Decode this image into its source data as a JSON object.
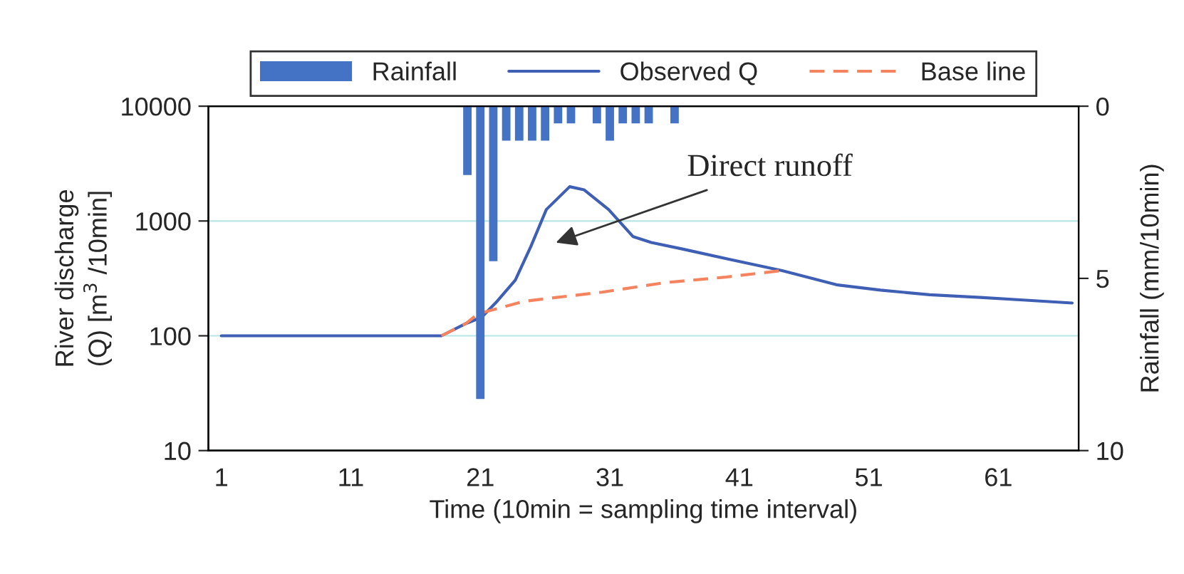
{
  "chart_data": {
    "type": "line",
    "xlabel": "Time (10min = sampling time interval)",
    "ylabel": "River discharge\n(Q) [m$^{3}$ /10min]",
    "y2label": "Rainfall (mm/10min)",
    "log": true,
    "xlim": [
      0,
      67.2
    ],
    "xticks": [
      1,
      11,
      21,
      31,
      41,
      51,
      61
    ],
    "ylim": [
      10,
      10000
    ],
    "yticks": [
      10,
      100,
      1000,
      10000
    ],
    "y2lim": [
      10,
      0
    ],
    "y2ticks": [
      0,
      5,
      10
    ],
    "grid": "y",
    "legend": "top",
    "series": [
      {
        "name": "Rainfall",
        "type": "bar",
        "axis": "y2",
        "color": "#4472c4",
        "x": [
          20,
          21,
          22,
          23,
          24,
          25,
          26,
          27,
          28,
          30,
          31,
          32,
          33,
          34,
          36
        ],
        "values": [
          2.0,
          8.5,
          4.5,
          1.0,
          1.0,
          1.0,
          1.0,
          0.5,
          0.5,
          0.5,
          1.0,
          0.5,
          0.5,
          0.5,
          0.5
        ]
      },
      {
        "name": "Observed Q",
        "line_style": "solid",
        "color": "#3f5fb5",
        "x": [
          1,
          18,
          19.9,
          21.1,
          22.3,
          23.7,
          24.9,
          26.1,
          27.9,
          29,
          30.9,
          32.8,
          34.2,
          36.6,
          40,
          44.3,
          48.6,
          51.9,
          55.7,
          59.6,
          62.9,
          66.7
        ],
        "values": [
          100,
          100,
          128,
          145,
          200,
          305,
          600,
          1260,
          1990,
          1870,
          1260,
          730,
          650,
          570,
          470,
          370,
          277,
          250,
          228,
          216,
          205,
          193
        ]
      },
      {
        "name": "Base line",
        "line_style": "dashed",
        "color": "#f4845f",
        "x": [
          18,
          19.9,
          20.8,
          24.4,
          30.4,
          35.2,
          40,
          44.3
        ],
        "values": [
          100,
          128,
          155,
          200,
          240,
          290,
          325,
          370
        ]
      }
    ],
    "annotations": [
      "Direct runoff"
    ]
  }
}
